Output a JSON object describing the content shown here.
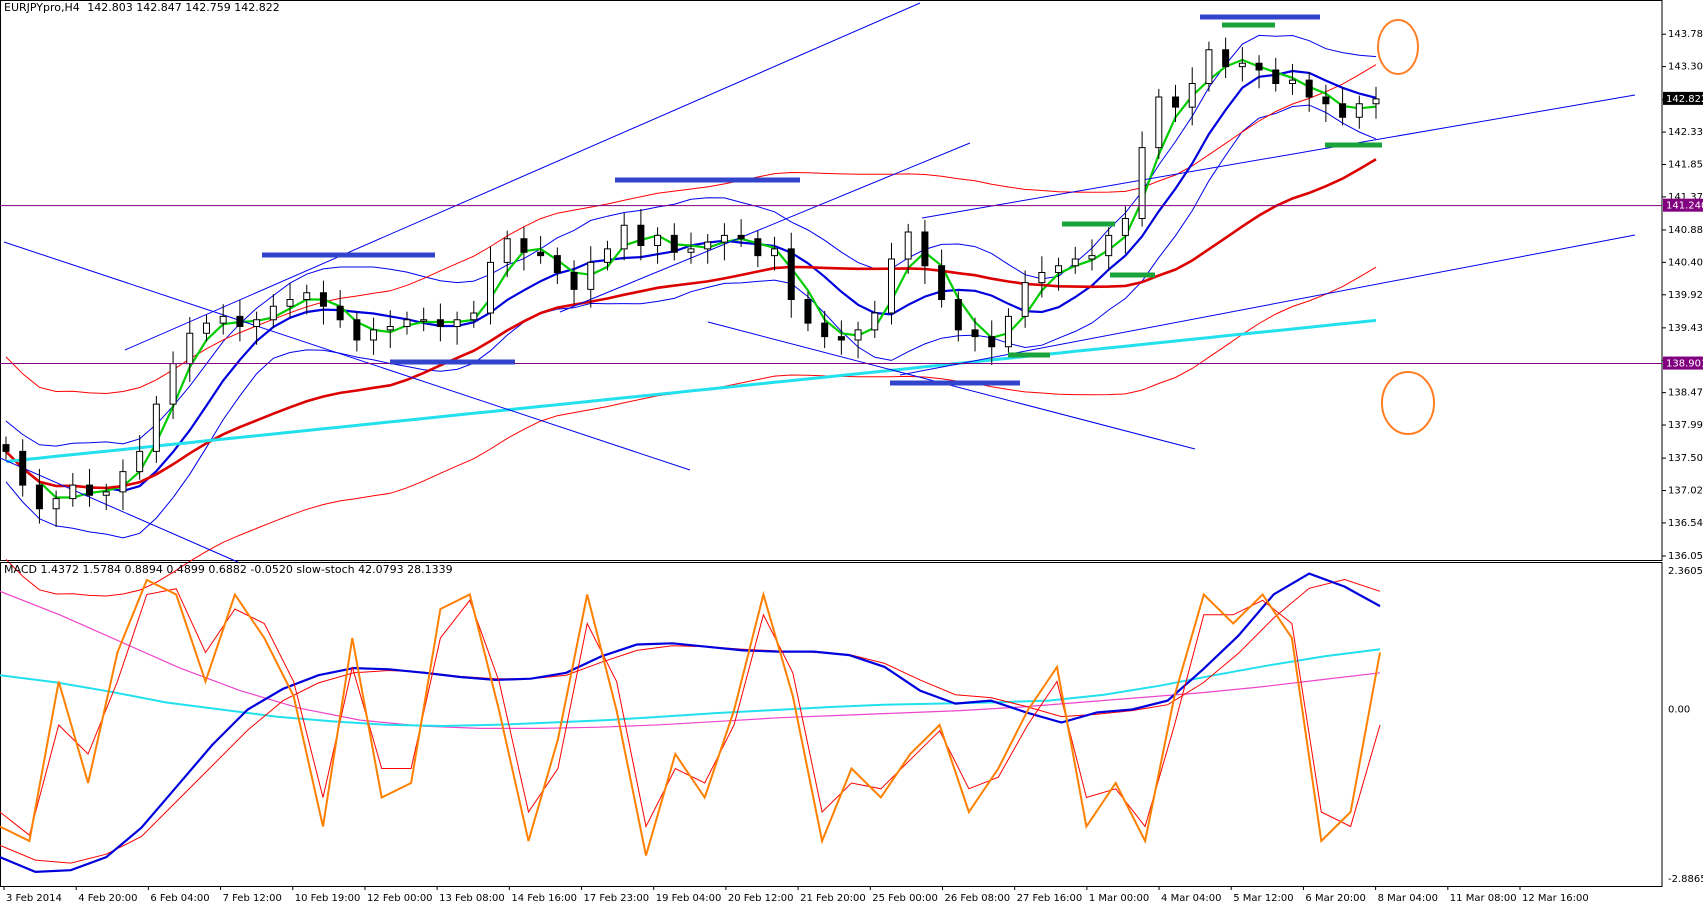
{
  "main_header": {
    "symbol": "EURJPYpro,H4",
    "ohlc": "142.803 142.847 142.759 142.822"
  },
  "sub_header": {
    "text": "MACD 1.4372 1.5784 0.8894 0.4899 0.6882 -0.0520  slow-stoch 42.0793 28.1339"
  },
  "colors": {
    "price_label_bg": "#000000",
    "level_label_bg": "#800080",
    "ma_red": "#dd0000",
    "bb_blue": "#0000ee",
    "ma_green": "#00cc00",
    "ma_cyan": "#22e0ee",
    "macd_blue": "#0000dd",
    "stoch_orange": "#ff8000",
    "signal_red": "#ff0000",
    "magenta": "#ee44cc",
    "purple_line": "#800080",
    "accent_green": "#1aa33a",
    "accent_blue": "#3344cc"
  },
  "chart_data": [
    {
      "type": "candlestick",
      "title": "EURJPYpro,H4",
      "ylim": [
        136.05,
        144.05
      ],
      "y_ticks": [
        "143.780",
        "143.300",
        "142.810",
        "142.330",
        "141.850",
        "141.370",
        "140.880",
        "140.400",
        "139.920",
        "139.430",
        "138.950",
        "138.470",
        "137.990",
        "137.500",
        "137.020",
        "136.540",
        "136.050"
      ],
      "price_labels": [
        {
          "value": 142.822,
          "label": "142.822",
          "kind": "current"
        },
        {
          "value": 141.24,
          "label": "141.240",
          "kind": "level"
        },
        {
          "value": 138.901,
          "label": "138.901",
          "kind": "level"
        }
      ],
      "horizontal_levels": [
        141.24,
        138.901
      ],
      "x_labels": [
        "3 Feb 2014",
        "4 Feb 20:00",
        "6 Feb 04:00",
        "7 Feb 12:00",
        "10 Feb 19:00",
        "12 Feb 00:00",
        "13 Feb 08:00",
        "14 Feb 16:00",
        "17 Feb 23:00",
        "19 Feb 04:00",
        "20 Feb 12:00",
        "21 Feb 20:00",
        "25 Feb 00:00",
        "26 Feb 08:00",
        "27 Feb 16:00",
        "1 Mar 00:00",
        "4 Mar 04:00",
        "5 Mar 12:00",
        "6 Mar 20:00",
        "8 Mar 04:00",
        "11 Mar 08:00",
        "12 Mar 16:00"
      ],
      "close_path": [
        137.6,
        137.1,
        136.75,
        136.9,
        137.1,
        136.95,
        137.0,
        137.3,
        137.6,
        138.3,
        138.9,
        139.35,
        139.5,
        139.6,
        139.45,
        139.55,
        139.75,
        139.85,
        139.95,
        139.75,
        139.55,
        139.25,
        139.4,
        139.45,
        139.55,
        139.55,
        139.45,
        139.55,
        139.65,
        140.4,
        140.75,
        140.55,
        140.5,
        140.25,
        140.0,
        140.4,
        140.6,
        140.95,
        140.65,
        140.8,
        140.55,
        140.6,
        140.7,
        140.8,
        140.75,
        140.5,
        140.6,
        139.85,
        139.5,
        139.3,
        139.25,
        139.4,
        139.65,
        140.45,
        140.85,
        140.35,
        139.85,
        139.4,
        139.3,
        139.15,
        139.6,
        140.1,
        140.25,
        140.35,
        140.45,
        140.5,
        140.8,
        141.05,
        142.1,
        142.85,
        142.7,
        143.05,
        143.55,
        143.3,
        143.35,
        143.25,
        143.05,
        143.1,
        142.85,
        142.75,
        142.55,
        142.75,
        142.822
      ],
      "series": [
        {
          "name": "",
          "style": "candles"
        }
      ]
    },
    {
      "type": "line",
      "title": "MACD / slow-stoch",
      "ylim": [
        -2.8865,
        2.3605
      ],
      "y_ticks": [
        "2.3605",
        "0.00",
        "-2.8865"
      ],
      "series": [
        {
          "name": "MACD",
          "values": [
            -2.5,
            -2.75,
            -2.72,
            -2.5,
            -2.0,
            -1.3,
            -0.6,
            0.0,
            0.35,
            0.58,
            0.7,
            0.68,
            0.62,
            0.55,
            0.5,
            0.52,
            0.62,
            0.9,
            1.1,
            1.12,
            1.06,
            1.0,
            0.98,
            0.98,
            0.92,
            0.72,
            0.32,
            0.1,
            0.15,
            -0.05,
            -0.22,
            -0.05,
            0.0,
            0.15,
            0.68,
            1.25,
            1.95,
            2.3,
            2.08,
            1.75
          ]
        },
        {
          "name": "Signal",
          "values": [
            -2.3,
            -2.55,
            -2.6,
            -2.45,
            -2.15,
            -1.55,
            -0.95,
            -0.35,
            0.15,
            0.45,
            0.62,
            0.66,
            0.63,
            0.56,
            0.52,
            0.52,
            0.58,
            0.8,
            1.0,
            1.08,
            1.06,
            1.02,
            0.99,
            0.97,
            0.93,
            0.78,
            0.5,
            0.25,
            0.2,
            0.05,
            -0.12,
            -0.08,
            -0.02,
            0.08,
            0.45,
            0.95,
            1.55,
            2.05,
            2.2,
            2.0
          ]
        },
        {
          "name": "MA cyan",
          "values": [
            0.58,
            0.46,
            0.3,
            0.12,
            0.0,
            -0.12,
            -0.2,
            -0.26,
            -0.28,
            -0.26,
            -0.22,
            -0.18,
            -0.12,
            -0.06,
            -0.01,
            0.04,
            0.08,
            0.1,
            0.12,
            0.15,
            0.25,
            0.4,
            0.58,
            0.75,
            0.9,
            1.02
          ]
        },
        {
          "name": "MA magenta",
          "values": [
            2.0,
            1.6,
            1.15,
            0.7,
            0.32,
            0.02,
            -0.18,
            -0.28,
            -0.32,
            -0.32,
            -0.3,
            -0.26,
            -0.2,
            -0.14,
            -0.1,
            -0.06,
            -0.02,
            0.04,
            0.12,
            0.2,
            0.28,
            0.38,
            0.5,
            0.62
          ]
        },
        {
          "name": "Stoch main",
          "values": [
            15,
            10,
            65,
            30,
            75,
            100,
            95,
            65,
            95,
            80,
            60,
            15,
            80,
            25,
            30,
            90,
            95,
            55,
            10,
            45,
            95,
            55,
            5,
            40,
            25,
            55,
            95,
            60,
            10,
            35,
            25,
            40,
            50,
            20,
            35,
            55,
            70,
            15,
            30,
            10,
            60,
            95,
            85,
            95,
            80,
            10,
            20,
            75
          ]
        },
        {
          "name": "Stoch signal",
          "values": [
            20,
            12,
            50,
            40,
            65,
            95,
            97,
            75,
            90,
            85,
            65,
            25,
            70,
            35,
            35,
            80,
            93,
            65,
            20,
            35,
            85,
            65,
            15,
            35,
            30,
            50,
            88,
            68,
            20,
            30,
            28,
            38,
            48,
            28,
            32,
            50,
            65,
            25,
            28,
            15,
            50,
            88,
            88,
            93,
            85,
            20,
            15,
            50
          ]
        }
      ]
    }
  ]
}
